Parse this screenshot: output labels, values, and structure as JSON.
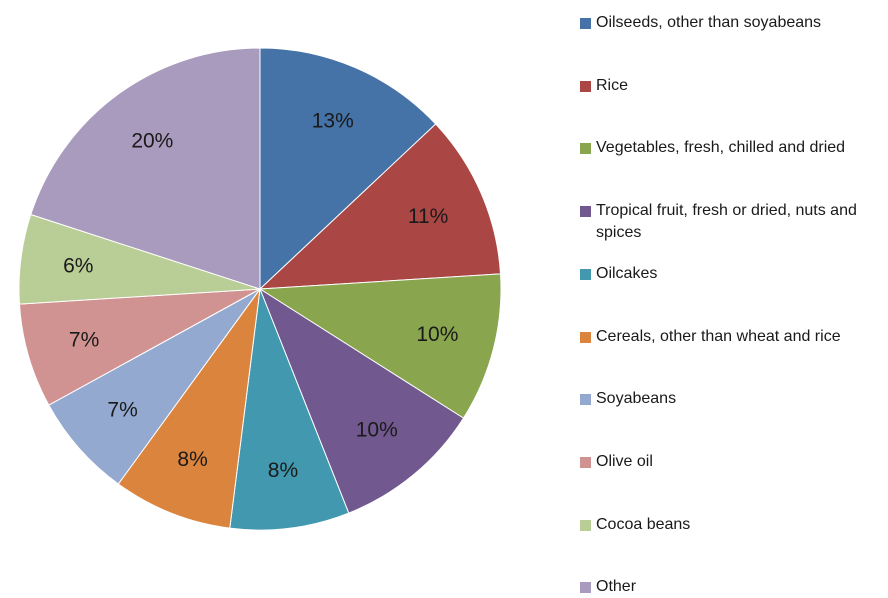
{
  "chart_data": {
    "type": "pie",
    "title": "",
    "legend_position": "right",
    "start_angle_deg": 0,
    "direction": "clockwise",
    "slices": [
      {
        "label": "Oilseeds, other than soyabeans",
        "value": 13,
        "display": "13%",
        "color": "#4572A7"
      },
      {
        "label": "Rice",
        "value": 11,
        "display": "11%",
        "color": "#AA4643"
      },
      {
        "label": "Vegetables, fresh, chilled and dried",
        "value": 10,
        "display": "10%",
        "color": "#89A54E"
      },
      {
        "label": "Tropical fruit, fresh or dried, nuts and spices",
        "value": 10,
        "display": "10%",
        "color": "#71588F"
      },
      {
        "label": "Oilcakes",
        "value": 8,
        "display": "8%",
        "color": "#4198AF"
      },
      {
        "label": "Cereals, other than wheat and rice",
        "value": 8,
        "display": "8%",
        "color": "#DB843D"
      },
      {
        "label": "Soyabeans",
        "value": 7,
        "display": "7%",
        "color": "#93A9CF"
      },
      {
        "label": "Olive oil",
        "value": 7,
        "display": "7%",
        "color": "#D19392"
      },
      {
        "label": "Cocoa beans",
        "value": 6,
        "display": "6%",
        "color": "#B9CD96"
      },
      {
        "label": "Other",
        "value": 20,
        "display": "20%",
        "color": "#A99BBD"
      }
    ]
  }
}
